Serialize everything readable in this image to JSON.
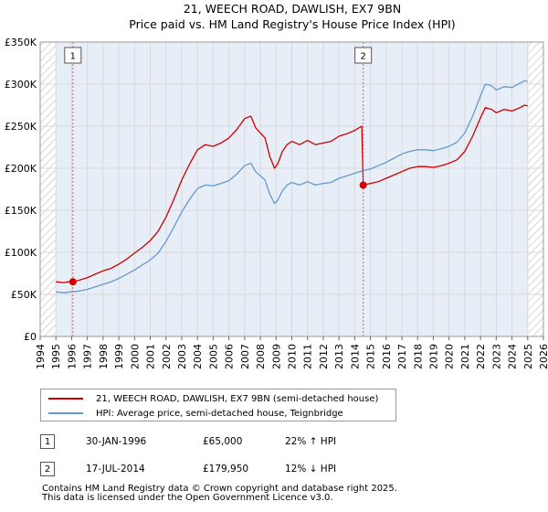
{
  "chart_data": {
    "type": "line",
    "title": "21, WEECH ROAD, DAWLISH, EX7 9BN",
    "subtitle": "Price paid vs. HM Land Registry's House Price Index (HPI)",
    "xlim": [
      1994,
      2026
    ],
    "ylim": [
      0,
      350000
    ],
    "x_ticks": [
      "1994",
      "1995",
      "1996",
      "1997",
      "1998",
      "1999",
      "2000",
      "2001",
      "2002",
      "2003",
      "2004",
      "2005",
      "2006",
      "2007",
      "2008",
      "2009",
      "2010",
      "2011",
      "2012",
      "2013",
      "2014",
      "2015",
      "2016",
      "2017",
      "2018",
      "2019",
      "2020",
      "2021",
      "2022",
      "2023",
      "2024",
      "2025",
      "2026"
    ],
    "y_ticks": [
      {
        "value": 0,
        "label": "£0"
      },
      {
        "value": 50000,
        "label": "£50K"
      },
      {
        "value": 100000,
        "label": "£100K"
      },
      {
        "value": 150000,
        "label": "£150K"
      },
      {
        "value": 200000,
        "label": "£200K"
      },
      {
        "value": 250000,
        "label": "£250K"
      },
      {
        "value": 300000,
        "label": "£300K"
      },
      {
        "value": 350000,
        "label": "£350K"
      }
    ],
    "colors": {
      "property": "#cc0000",
      "hpi": "#6699cc",
      "shade": "#e8eef8",
      "grid": "#d9d9d9",
      "vline": "#ff4d4d"
    },
    "series": [
      {
        "name": "21, WEECH ROAD, DAWLISH, EX7 9BN (semi-detached house)",
        "x": [
          1995.0,
          1995.5,
          1996.0,
          1996.08,
          1996.5,
          1997.0,
          1997.5,
          1998.0,
          1998.5,
          1999.0,
          1999.5,
          2000.0,
          2000.5,
          2001.0,
          2001.5,
          2002.0,
          2002.5,
          2003.0,
          2003.5,
          2004.0,
          2004.5,
          2005.0,
          2005.5,
          2006.0,
          2006.5,
          2007.0,
          2007.4,
          2007.7,
          2008.0,
          2008.3,
          2008.6,
          2008.9,
          2009.1,
          2009.4,
          2009.7,
          2010.0,
          2010.5,
          2011.0,
          2011.5,
          2012.0,
          2012.5,
          2013.0,
          2013.5,
          2014.0,
          2014.45,
          2014.54,
          2015.0,
          2015.5,
          2016.0,
          2016.5,
          2017.0,
          2017.5,
          2018.0,
          2018.5,
          2019.0,
          2019.5,
          2020.0,
          2020.5,
          2021.0,
          2021.5,
          2022.0,
          2022.3,
          2022.7,
          2023.0,
          2023.5,
          2024.0,
          2024.5,
          2024.8,
          2025.0
        ],
        "values": [
          65000,
          64000,
          65500,
          65000,
          67000,
          70000,
          74000,
          78000,
          81000,
          86000,
          92000,
          99000,
          106000,
          114000,
          125000,
          142000,
          163000,
          186000,
          205000,
          222000,
          228000,
          226000,
          230000,
          236000,
          246000,
          259000,
          262000,
          248000,
          242000,
          236000,
          214000,
          200000,
          205000,
          220000,
          228000,
          232000,
          228000,
          233000,
          228000,
          230000,
          232000,
          238000,
          241000,
          245000,
          250000,
          179950,
          182000,
          184000,
          188000,
          192000,
          196000,
          200000,
          202000,
          202000,
          201000,
          203000,
          206000,
          210000,
          220000,
          238000,
          260000,
          272000,
          270000,
          266000,
          270000,
          268000,
          272000,
          275000,
          274000
        ]
      },
      {
        "name": "HPI: Average price, semi-detached house, Teignbridge",
        "x": [
          1995.0,
          1995.5,
          1996.0,
          1996.5,
          1997.0,
          1997.5,
          1998.0,
          1998.5,
          1999.0,
          1999.5,
          2000.0,
          2000.5,
          2001.0,
          2001.5,
          2002.0,
          2002.5,
          2003.0,
          2003.5,
          2004.0,
          2004.5,
          2005.0,
          2005.5,
          2006.0,
          2006.5,
          2007.0,
          2007.4,
          2007.7,
          2008.0,
          2008.3,
          2008.6,
          2008.9,
          2009.1,
          2009.4,
          2009.7,
          2010.0,
          2010.5,
          2011.0,
          2011.5,
          2012.0,
          2012.5,
          2013.0,
          2013.5,
          2014.0,
          2014.5,
          2015.0,
          2015.5,
          2016.0,
          2016.5,
          2017.0,
          2017.5,
          2018.0,
          2018.5,
          2019.0,
          2019.5,
          2020.0,
          2020.5,
          2021.0,
          2021.5,
          2022.0,
          2022.3,
          2022.7,
          2023.0,
          2023.5,
          2024.0,
          2024.5,
          2024.8,
          2025.0
        ],
        "values": [
          53000,
          52000,
          53000,
          54000,
          56000,
          59000,
          62000,
          65000,
          69000,
          74000,
          79000,
          85000,
          91000,
          99000,
          113000,
          130000,
          148000,
          163000,
          176000,
          180000,
          179000,
          182000,
          185000,
          193000,
          203000,
          206000,
          196000,
          191000,
          186000,
          169000,
          158000,
          162000,
          173000,
          180000,
          183000,
          180000,
          184000,
          180000,
          182000,
          183000,
          188000,
          191000,
          194000,
          197000,
          199000,
          203000,
          207000,
          212000,
          217000,
          220000,
          222000,
          222000,
          221000,
          223000,
          226000,
          231000,
          242000,
          262000,
          286000,
          300000,
          298000,
          293000,
          297000,
          296000,
          301000,
          304000,
          303000
        ]
      }
    ],
    "sales": [
      {
        "label": "1",
        "x": 1996.08,
        "value": 65000
      },
      {
        "label": "2",
        "x": 2014.54,
        "value": 179950
      }
    ],
    "shaded_before": 1995.0,
    "hatched_after": 2025.0,
    "grid": true,
    "legend_position": "bottom"
  },
  "legend": {
    "property_label": "21, WEECH ROAD, DAWLISH, EX7 9BN (semi-detached house)",
    "hpi_label": "HPI: Average price, semi-detached house, Teignbridge"
  },
  "transactions": [
    {
      "num": "1",
      "date": "30-JAN-1996",
      "price": "£65,000",
      "change": "22% ↑ HPI"
    },
    {
      "num": "2",
      "date": "17-JUL-2014",
      "price": "£179,950",
      "change": "12% ↓ HPI"
    }
  ],
  "footer": {
    "line1": "Contains HM Land Registry data © Crown copyright and database right 2025.",
    "line2": "This data is licensed under the Open Government Licence v3.0."
  }
}
